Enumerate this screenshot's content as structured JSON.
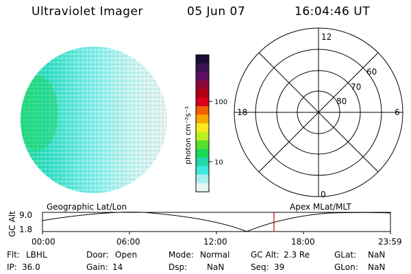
{
  "header": {
    "title": "Ultraviolet Imager",
    "date": "05 Jun 07",
    "time": "16:04:46 UT"
  },
  "colorbar": {
    "label": "photon cm⁻²s⁻¹",
    "ticks": [
      "100",
      "10"
    ],
    "colors": [
      "#1a0c33",
      "#3a1650",
      "#601060",
      "#8a0838",
      "#b00014",
      "#d8001c",
      "#f06000",
      "#f8a800",
      "#f8e820",
      "#b8f020",
      "#58e030",
      "#18d858",
      "#20d8a8",
      "#40e8e0",
      "#a8f0f0",
      "#e8f4f4"
    ]
  },
  "polar_plot": {
    "lat_labels": [
      "80",
      "70",
      "60"
    ],
    "mlt_labels": {
      "top": "12",
      "left": "18",
      "right": "6",
      "bottom": "0"
    }
  },
  "altitude_plot": {
    "left_label": "Geographic Lat/Lon",
    "right_label": "Apex MLat/MLT",
    "ylabel": "GC Alt",
    "yticks": [
      "9.0",
      "1.8"
    ],
    "xticks": [
      "00:00",
      "06:00",
      "12:00",
      "18:00",
      "23:59"
    ],
    "marker_color": "#cc0000"
  },
  "footer": {
    "row1": [
      {
        "key": "Flt:",
        "val": "LBHL"
      },
      {
        "key": "Door:",
        "val": "Open"
      },
      {
        "key": "Mode:",
        "val": "Normal"
      },
      {
        "key": "GC Alt:",
        "val": "2.3 Re"
      },
      {
        "key": "GLat:",
        "val": "NaN"
      }
    ],
    "row2": [
      {
        "key": "IP:",
        "val": "36.0"
      },
      {
        "key": "Gain:",
        "val": "14"
      },
      {
        "key": "Dsp:",
        "val": "NaN"
      },
      {
        "key": "Seq:",
        "val": "39"
      },
      {
        "key": "GLon:",
        "val": "NaN"
      }
    ]
  }
}
